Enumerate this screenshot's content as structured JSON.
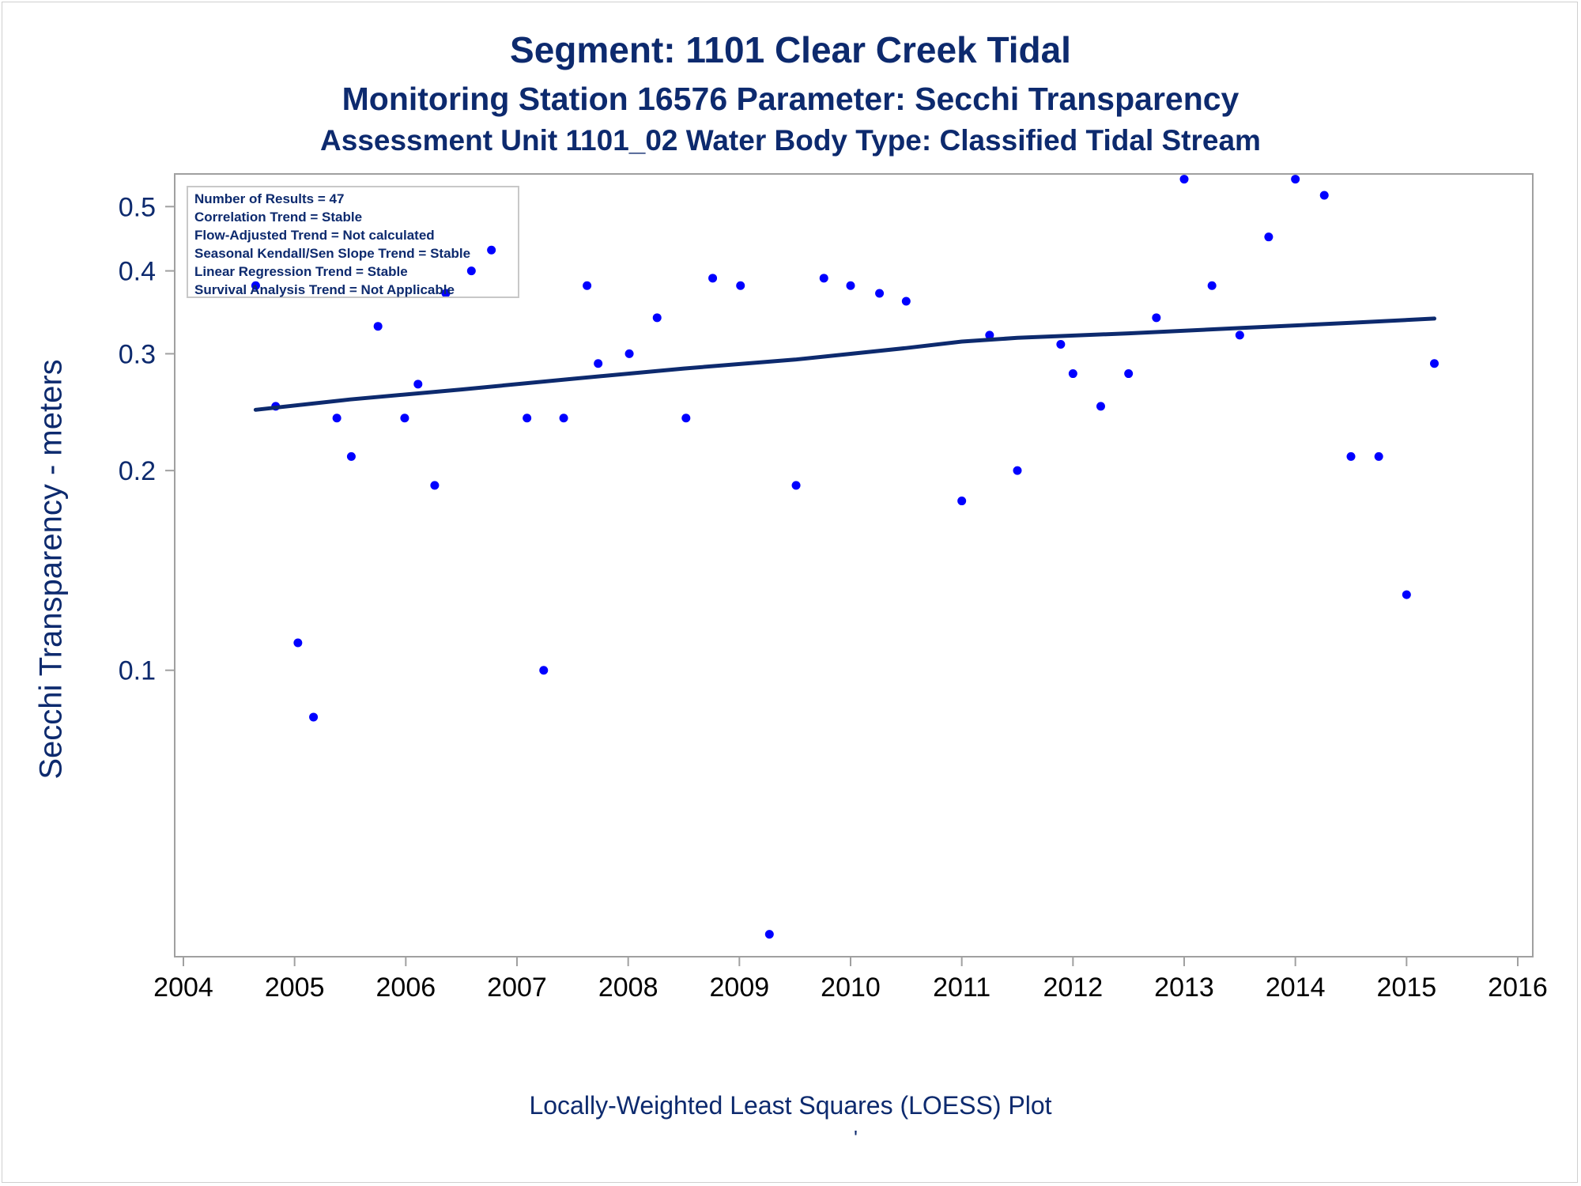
{
  "colors": {
    "text": "#0d2a6e",
    "marker": "#0000ff",
    "trend_line": "#0d2a6e",
    "frame": "#a0a0a0"
  },
  "chart_data": {
    "type": "scatter",
    "title": "Segment: 1101  Clear Creek Tidal",
    "subtitles": [
      "Monitoring Station 16576 Parameter: Secchi Transparency",
      "Assessment Unit 1101_02   Water Body Type: Classified Tidal Stream"
    ],
    "ylabel": "Secchi Transparency - meters",
    "footnote": "Locally-Weighted Least Squares (LOESS) Plot",
    "footmark": "'",
    "y_scale": "log",
    "xlim": [
      2004,
      2016
    ],
    "ylim": [
      0.037,
      0.56
    ],
    "x_ticks": [
      2004,
      2005,
      2006,
      2007,
      2008,
      2009,
      2010,
      2011,
      2012,
      2013,
      2014,
      2015,
      2016
    ],
    "y_ticks": [
      0.1,
      0.2,
      0.3,
      0.4,
      0.5
    ],
    "x_tick_labels": [
      "2004",
      "2005",
      "2006",
      "2007",
      "2008",
      "2009",
      "2010",
      "2011",
      "2012",
      "2013",
      "2014",
      "2015",
      "2016"
    ],
    "y_tick_labels": [
      "0.1",
      "0.2",
      "0.3",
      "0.4",
      "0.5"
    ],
    "grid": false,
    "legend_placement": "top-left",
    "stats": [
      "Number of Results = 47",
      "Correlation Trend = Stable",
      "Flow-Adjusted Trend = Not calculated",
      "Seasonal Kendall/Sen Slope Trend = Stable",
      "Linear Regression Trend = Stable",
      "Survival Analysis Trend = Not Applicable"
    ],
    "series": [
      {
        "kind": "points",
        "x": [
          2004.65,
          2004.83,
          2005.03,
          2005.17,
          2005.38,
          2005.51,
          2005.75,
          2005.99,
          2006.11,
          2006.26,
          2006.36,
          2006.59,
          2006.77,
          2007.09,
          2007.24,
          2007.42,
          2007.63,
          2007.73,
          2008.01,
          2008.26,
          2008.52,
          2008.76,
          2009.01,
          2009.27,
          2009.51,
          2009.76,
          2010.0,
          2010.26,
          2010.5,
          2011.0,
          2011.25,
          2011.5,
          2011.89,
          2012.0,
          2012.25,
          2012.5,
          2012.75,
          2013.0,
          2013.25,
          2013.5,
          2013.76,
          2014.0,
          2014.26,
          2014.5,
          2014.75,
          2015.0,
          2015.25
        ],
        "y": [
          0.38,
          0.25,
          0.11,
          0.085,
          0.24,
          0.21,
          0.33,
          0.24,
          0.27,
          0.19,
          0.37,
          0.4,
          0.43,
          0.24,
          0.1,
          0.24,
          0.38,
          0.29,
          0.3,
          0.34,
          0.24,
          0.39,
          0.38,
          0.04,
          0.19,
          0.39,
          0.38,
          0.37,
          0.36,
          0.18,
          0.32,
          0.2,
          0.31,
          0.28,
          0.25,
          0.28,
          0.34,
          0.55,
          0.38,
          0.32,
          0.45,
          0.55,
          0.52,
          0.21,
          0.21,
          0.13,
          0.29
        ]
      },
      {
        "kind": "loess",
        "x": [
          2004.65,
          2005.5,
          2006.5,
          2007.5,
          2008.5,
          2009.5,
          2010.5,
          2011.0,
          2011.5,
          2012.5,
          2013.5,
          2014.5,
          2015.25
        ],
        "y": [
          0.247,
          0.256,
          0.265,
          0.275,
          0.285,
          0.294,
          0.306,
          0.313,
          0.317,
          0.322,
          0.328,
          0.334,
          0.339
        ]
      }
    ]
  }
}
